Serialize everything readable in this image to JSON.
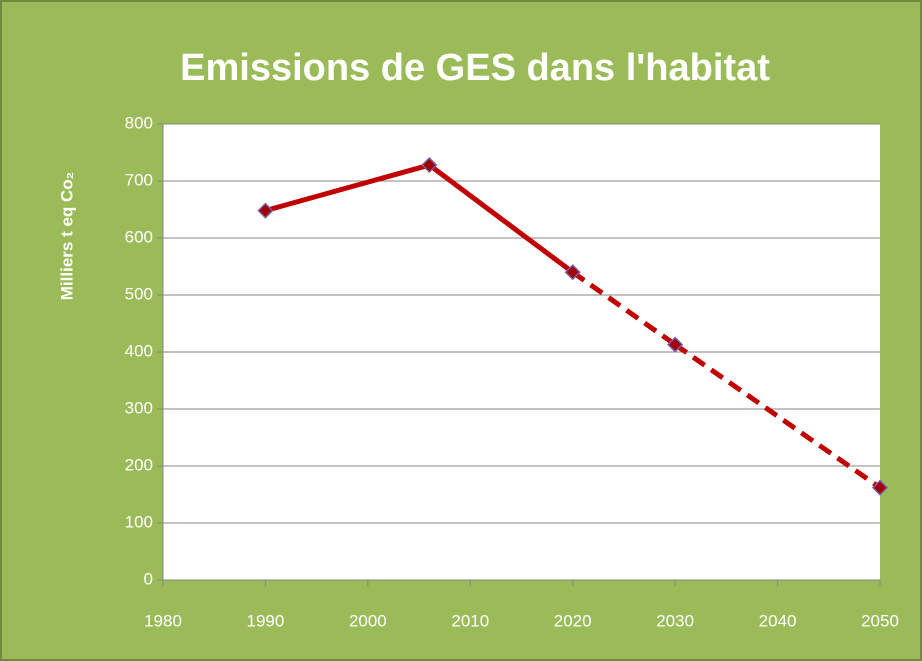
{
  "chart_data": {
    "type": "line",
    "title": "Emissions de GES dans l'habitat",
    "y_label": "Milliers t eq Co₂",
    "x": [
      1990,
      2006,
      2020,
      2030,
      2050
    ],
    "values": [
      648,
      728,
      540,
      413,
      162
    ],
    "segment_styles": [
      "solid",
      "solid",
      "dashed",
      "dashed"
    ],
    "color": "#c00000",
    "marker_color": "#a00000",
    "marker_edge": "#7a5fa0",
    "xlim": [
      1980,
      2050
    ],
    "xticks": [
      1980,
      1990,
      2000,
      2010,
      2020,
      2030,
      2040,
      2050
    ],
    "ylim": [
      0,
      800
    ],
    "yticks": [
      0,
      100,
      200,
      300,
      400,
      500,
      600,
      700,
      800
    ],
    "grid": true
  }
}
